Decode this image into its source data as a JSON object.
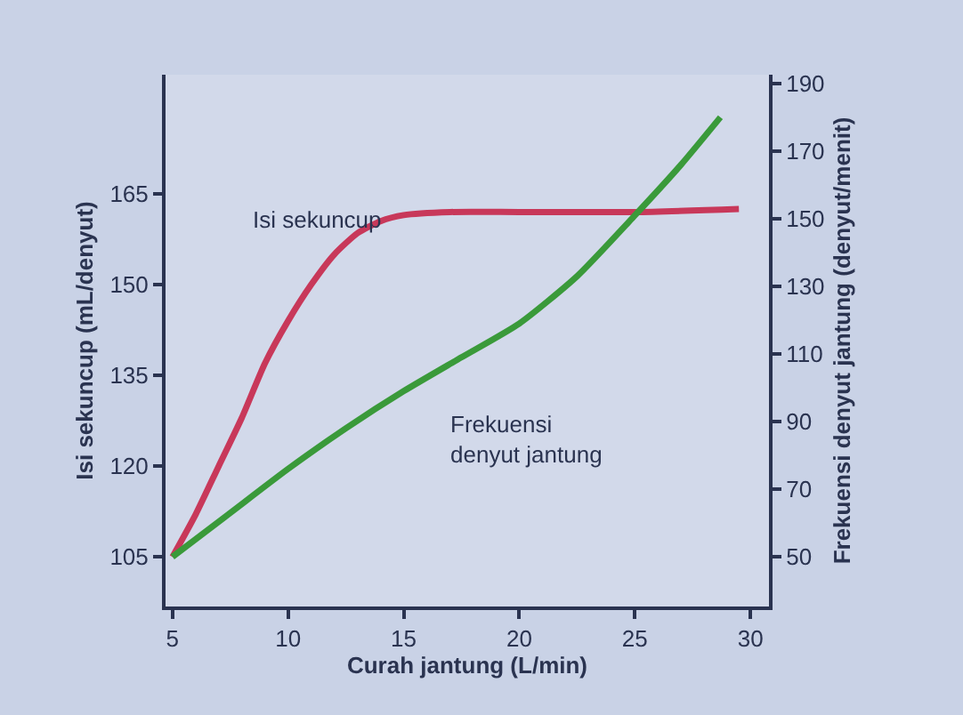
{
  "chart_data": {
    "type": "line",
    "xlabel": "Curah jantung (L/min)",
    "ylabel": "Isi sekuncup (mL/denyut)",
    "y2label": "Frekuensi denyut jantung (denyut/menit)",
    "xlim": [
      4.7,
      30.8
    ],
    "xticks": [
      5,
      10,
      15,
      20,
      25,
      30
    ],
    "ylim": [
      96.8,
      184.7
    ],
    "yticks": [
      105,
      120,
      135,
      150,
      165
    ],
    "y2lim": [
      35.3,
      192.6
    ],
    "y2ticks": [
      50,
      70,
      90,
      110,
      130,
      150,
      170,
      190
    ],
    "grid": false,
    "legend": false,
    "marker": "none",
    "line_style": "solid",
    "series": [
      {
        "name": "Isi sekuncup",
        "color": "#c8385a",
        "x": [
          5,
          6,
          7,
          8,
          9,
          10,
          11,
          12,
          13,
          14,
          15,
          17,
          20,
          25,
          29.5
        ],
        "values": [
          105,
          112,
          120,
          128,
          137,
          144,
          150,
          155,
          158.5,
          160.5,
          161.5,
          162,
          162,
          162,
          162.5
        ]
      },
      {
        "name": "Frekuensi\ndenyut jantung",
        "color": "#3a9a3a",
        "axis": "y2",
        "x": [
          5,
          7.5,
          10,
          12.5,
          15,
          17.5,
          20,
          22.5,
          25,
          27,
          28.7
        ],
        "values": [
          50,
          63,
          76,
          88,
          99,
          109,
          119,
          133,
          151,
          166,
          180
        ]
      }
    ]
  }
}
